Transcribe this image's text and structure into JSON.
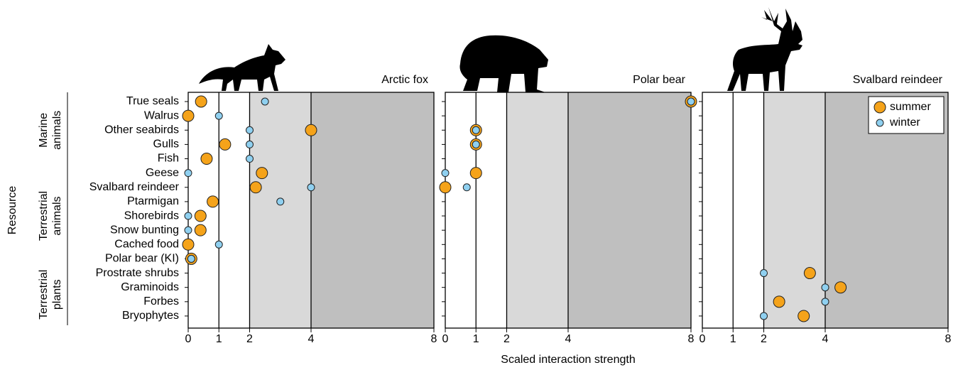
{
  "chart_data": {
    "type": "dot",
    "y_label": "Resource",
    "x_label": "Scaled interaction strength",
    "categories": [
      "True seals",
      "Walrus",
      "Other seabirds",
      "Gulls",
      "Fish",
      "Geese",
      "Svalbard reindeer",
      "Ptarmigan",
      "Shorebirds",
      "Snow bunting",
      "Cached food",
      "Polar bear (KI)",
      "Prostrate shrubs",
      "Graminoids",
      "Forbes",
      "Bryophytes"
    ],
    "group_labels": [
      [
        "Marine",
        "animals"
      ],
      [
        "Terrestrial",
        "animals"
      ],
      [
        "Terrestrial",
        "plants"
      ]
    ],
    "xlim": [
      0,
      8
    ],
    "xticks": [
      0,
      1,
      2,
      4,
      8
    ],
    "shading": [
      {
        "from": 2,
        "to": 4,
        "color": "#d9d9d9"
      },
      {
        "from": 4,
        "to": 8,
        "color": "#bfbfbf"
      }
    ],
    "panels": [
      {
        "title": "Arctic fox",
        "series": [
          {
            "name": "summer",
            "color": "#f5a31a",
            "values": [
              0.42,
              0,
              4,
              1.2,
              0.6,
              2.4,
              2.2,
              0.8,
              0.4,
              0.4,
              0,
              0.1,
              null,
              null,
              null,
              null
            ]
          },
          {
            "name": "winter",
            "color": "#8fd0f0",
            "values": [
              2.5,
              1,
              2,
              2,
              2,
              0,
              4,
              3,
              0,
              0,
              1,
              0.1,
              null,
              null,
              null,
              null
            ]
          }
        ]
      },
      {
        "title": "Polar bear",
        "series": [
          {
            "name": "summer",
            "color": "#f5a31a",
            "values": [
              8,
              null,
              1,
              1,
              null,
              1,
              0,
              null,
              null,
              null,
              null,
              null,
              null,
              null,
              null,
              null
            ]
          },
          {
            "name": "winter",
            "color": "#8fd0f0",
            "values": [
              8,
              null,
              1,
              1,
              null,
              0,
              0.7,
              null,
              null,
              null,
              null,
              null,
              null,
              null,
              null,
              null
            ]
          }
        ]
      },
      {
        "title": "Svalbard reindeer",
        "legend": "upper right",
        "series": [
          {
            "name": "summer",
            "color": "#f5a31a",
            "values": [
              null,
              null,
              null,
              null,
              null,
              null,
              null,
              null,
              null,
              null,
              null,
              null,
              3.5,
              4.5,
              2.5,
              3.3
            ]
          },
          {
            "name": "winter",
            "color": "#8fd0f0",
            "values": [
              null,
              null,
              null,
              null,
              null,
              null,
              null,
              null,
              null,
              null,
              null,
              null,
              2,
              4,
              4,
              2
            ]
          }
        ]
      }
    ]
  }
}
